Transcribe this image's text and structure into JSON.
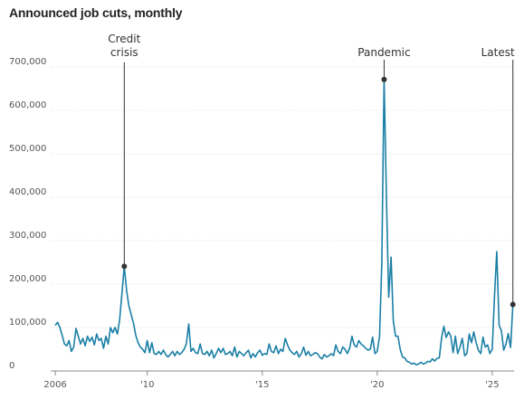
{
  "chart_data": {
    "type": "line",
    "title": "Announced job cuts, monthly",
    "xlabel": "",
    "ylabel": "",
    "ylim": [
      0,
      700000
    ],
    "xlim": [
      2005.8,
      2025.95
    ],
    "grid": true,
    "y_ticks": [
      {
        "value": 0,
        "label": "0"
      },
      {
        "value": 100000,
        "label": "100,000"
      },
      {
        "value": 200000,
        "label": "200,000"
      },
      {
        "value": 300000,
        "label": "300,000"
      },
      {
        "value": 400000,
        "label": "400,000"
      },
      {
        "value": 500000,
        "label": "500,000"
      },
      {
        "value": 600000,
        "label": "600,000"
      },
      {
        "value": 700000,
        "label": "700,000"
      }
    ],
    "x_ticks": [
      {
        "value": 2006,
        "label": "2006"
      },
      {
        "value": 2010,
        "label": "'10"
      },
      {
        "value": 2015,
        "label": "'15"
      },
      {
        "value": 2020,
        "label": "'20"
      },
      {
        "value": 2025,
        "label": "'25"
      }
    ],
    "series": [
      {
        "color": "#1a7fa6",
        "points": [
          [
            2006.0,
            105000
          ],
          [
            2006.1,
            112000
          ],
          [
            2006.2,
            100000
          ],
          [
            2006.3,
            82000
          ],
          [
            2006.4,
            62000
          ],
          [
            2006.5,
            58000
          ],
          [
            2006.6,
            70000
          ],
          [
            2006.7,
            45000
          ],
          [
            2006.8,
            55000
          ],
          [
            2006.9,
            98000
          ],
          [
            2007.0,
            80000
          ],
          [
            2007.1,
            62000
          ],
          [
            2007.2,
            75000
          ],
          [
            2007.3,
            58000
          ],
          [
            2007.4,
            80000
          ],
          [
            2007.5,
            68000
          ],
          [
            2007.6,
            78000
          ],
          [
            2007.7,
            60000
          ],
          [
            2007.8,
            85000
          ],
          [
            2007.9,
            70000
          ],
          [
            2008.0,
            75000
          ],
          [
            2008.1,
            52000
          ],
          [
            2008.2,
            80000
          ],
          [
            2008.3,
            62000
          ],
          [
            2008.4,
            100000
          ],
          [
            2008.5,
            88000
          ],
          [
            2008.6,
            100000
          ],
          [
            2008.7,
            85000
          ],
          [
            2008.8,
            118000
          ],
          [
            2008.9,
            180000
          ],
          [
            2009.0,
            241000
          ],
          [
            2009.1,
            185000
          ],
          [
            2009.2,
            150000
          ],
          [
            2009.3,
            130000
          ],
          [
            2009.4,
            110000
          ],
          [
            2009.5,
            82000
          ],
          [
            2009.6,
            65000
          ],
          [
            2009.7,
            55000
          ],
          [
            2009.8,
            50000
          ],
          [
            2009.9,
            42000
          ],
          [
            2010.0,
            70000
          ],
          [
            2010.1,
            42000
          ],
          [
            2010.2,
            65000
          ],
          [
            2010.3,
            40000
          ],
          [
            2010.4,
            38000
          ],
          [
            2010.5,
            45000
          ],
          [
            2010.6,
            38000
          ],
          [
            2010.7,
            48000
          ],
          [
            2010.8,
            38000
          ],
          [
            2010.9,
            32000
          ],
          [
            2011.0,
            38000
          ],
          [
            2011.1,
            45000
          ],
          [
            2011.2,
            35000
          ],
          [
            2011.3,
            45000
          ],
          [
            2011.4,
            38000
          ],
          [
            2011.5,
            42000
          ],
          [
            2011.6,
            50000
          ],
          [
            2011.7,
            62000
          ],
          [
            2011.8,
            108000
          ],
          [
            2011.9,
            45000
          ],
          [
            2012.0,
            52000
          ],
          [
            2012.1,
            42000
          ],
          [
            2012.2,
            40000
          ],
          [
            2012.3,
            62000
          ],
          [
            2012.4,
            40000
          ],
          [
            2012.5,
            38000
          ],
          [
            2012.6,
            45000
          ],
          [
            2012.7,
            35000
          ],
          [
            2012.8,
            48000
          ],
          [
            2012.9,
            30000
          ],
          [
            2013.0,
            40000
          ],
          [
            2013.1,
            52000
          ],
          [
            2013.2,
            42000
          ],
          [
            2013.3,
            52000
          ],
          [
            2013.4,
            38000
          ],
          [
            2013.5,
            40000
          ],
          [
            2013.6,
            45000
          ],
          [
            2013.7,
            35000
          ],
          [
            2013.8,
            55000
          ],
          [
            2013.9,
            32000
          ],
          [
            2014.0,
            45000
          ],
          [
            2014.1,
            40000
          ],
          [
            2014.2,
            35000
          ],
          [
            2014.3,
            42000
          ],
          [
            2014.4,
            48000
          ],
          [
            2014.5,
            30000
          ],
          [
            2014.6,
            40000
          ],
          [
            2014.7,
            32000
          ],
          [
            2014.8,
            42000
          ],
          [
            2014.9,
            48000
          ],
          [
            2015.0,
            36000
          ],
          [
            2015.1,
            40000
          ],
          [
            2015.2,
            38000
          ],
          [
            2015.3,
            62000
          ],
          [
            2015.4,
            45000
          ],
          [
            2015.5,
            42000
          ],
          [
            2015.6,
            58000
          ],
          [
            2015.7,
            40000
          ],
          [
            2015.8,
            50000
          ],
          [
            2015.9,
            45000
          ],
          [
            2016.0,
            75000
          ],
          [
            2016.1,
            60000
          ],
          [
            2016.2,
            48000
          ],
          [
            2016.3,
            42000
          ],
          [
            2016.4,
            38000
          ],
          [
            2016.5,
            45000
          ],
          [
            2016.6,
            32000
          ],
          [
            2016.7,
            40000
          ],
          [
            2016.8,
            55000
          ],
          [
            2016.9,
            36000
          ],
          [
            2017.0,
            45000
          ],
          [
            2017.1,
            35000
          ],
          [
            2017.2,
            38000
          ],
          [
            2017.3,
            42000
          ],
          [
            2017.4,
            40000
          ],
          [
            2017.5,
            32000
          ],
          [
            2017.6,
            28000
          ],
          [
            2017.7,
            38000
          ],
          [
            2017.8,
            32000
          ],
          [
            2017.9,
            35000
          ],
          [
            2018.0,
            40000
          ],
          [
            2018.1,
            35000
          ],
          [
            2018.2,
            60000
          ],
          [
            2018.3,
            45000
          ],
          [
            2018.4,
            40000
          ],
          [
            2018.5,
            55000
          ],
          [
            2018.6,
            50000
          ],
          [
            2018.7,
            40000
          ],
          [
            2018.8,
            52000
          ],
          [
            2018.9,
            80000
          ],
          [
            2019.0,
            60000
          ],
          [
            2019.1,
            55000
          ],
          [
            2019.2,
            70000
          ],
          [
            2019.3,
            62000
          ],
          [
            2019.4,
            58000
          ],
          [
            2019.5,
            52000
          ],
          [
            2019.6,
            48000
          ],
          [
            2019.7,
            50000
          ],
          [
            2019.8,
            78000
          ],
          [
            2019.9,
            40000
          ],
          [
            2020.0,
            45000
          ],
          [
            2020.1,
            80000
          ],
          [
            2020.2,
            250000
          ],
          [
            2020.3,
            671000
          ],
          [
            2020.4,
            400000
          ],
          [
            2020.5,
            170000
          ],
          [
            2020.6,
            262000
          ],
          [
            2020.7,
            115000
          ],
          [
            2020.8,
            80000
          ],
          [
            2020.9,
            80000
          ],
          [
            2021.0,
            50000
          ],
          [
            2021.1,
            32000
          ],
          [
            2021.2,
            30000
          ],
          [
            2021.3,
            22000
          ],
          [
            2021.4,
            20000
          ],
          [
            2021.5,
            16000
          ],
          [
            2021.6,
            18000
          ],
          [
            2021.7,
            14000
          ],
          [
            2021.8,
            16000
          ],
          [
            2021.9,
            20000
          ],
          [
            2022.0,
            16000
          ],
          [
            2022.1,
            18000
          ],
          [
            2022.2,
            22000
          ],
          [
            2022.3,
            21000
          ],
          [
            2022.4,
            28000
          ],
          [
            2022.5,
            23000
          ],
          [
            2022.6,
            29000
          ],
          [
            2022.7,
            30000
          ],
          [
            2022.8,
            77000
          ],
          [
            2022.9,
            103000
          ],
          [
            2023.0,
            77000
          ],
          [
            2023.1,
            90000
          ],
          [
            2023.2,
            80000
          ],
          [
            2023.3,
            42000
          ],
          [
            2023.4,
            80000
          ],
          [
            2023.5,
            40000
          ],
          [
            2023.6,
            55000
          ],
          [
            2023.7,
            75000
          ],
          [
            2023.8,
            35000
          ],
          [
            2023.9,
            40000
          ],
          [
            2024.0,
            85000
          ],
          [
            2024.1,
            65000
          ],
          [
            2024.2,
            90000
          ],
          [
            2024.3,
            65000
          ],
          [
            2024.4,
            48000
          ],
          [
            2024.5,
            40000
          ],
          [
            2024.6,
            78000
          ],
          [
            2024.7,
            55000
          ],
          [
            2024.8,
            60000
          ],
          [
            2024.9,
            40000
          ],
          [
            2025.0,
            50000
          ],
          [
            2025.1,
            172000
          ],
          [
            2025.2,
            275000
          ],
          [
            2025.3,
            105000
          ],
          [
            2025.4,
            93000
          ],
          [
            2025.5,
            48000
          ],
          [
            2025.6,
            62000
          ],
          [
            2025.7,
            86000
          ],
          [
            2025.8,
            54000
          ],
          [
            2025.9,
            153000
          ]
        ]
      }
    ],
    "annotations": [
      {
        "lines": [
          "Credit",
          "crisis"
        ],
        "x": 2009.0,
        "y": 241000
      },
      {
        "lines": [
          "Pandemic"
        ],
        "x": 2020.3,
        "y": 671000
      },
      {
        "lines": [
          "Latest"
        ],
        "x": 2025.9,
        "y": 153000
      }
    ],
    "colors": {
      "line": "#1a7fa6",
      "grid": "#dddddd",
      "axis": "#888888",
      "marker": "#333333",
      "leader": "#333333"
    }
  }
}
